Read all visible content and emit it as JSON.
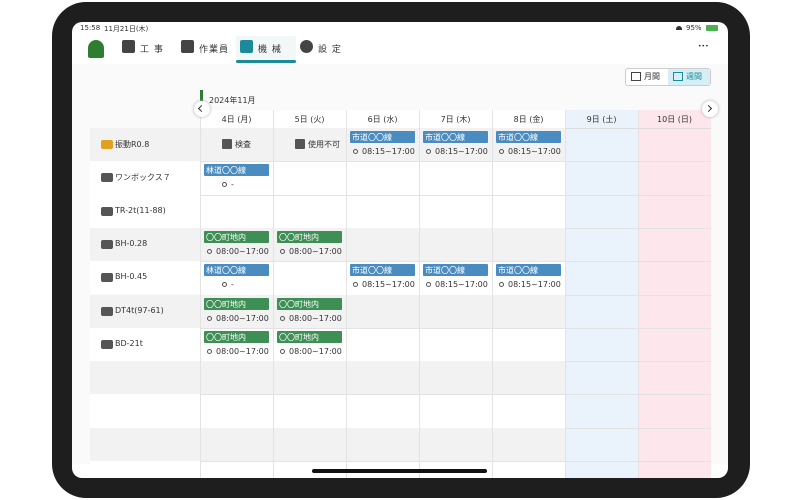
{
  "status_bar": {
    "time": "15:58",
    "date": "11月21日(木)",
    "battery": "95%"
  },
  "nav": {
    "items": [
      "工 事",
      "作業員",
      "機 械",
      "設 定"
    ],
    "active": 2,
    "more": "•••"
  },
  "view_toggle": {
    "items": [
      "月間",
      "週間"
    ],
    "active": 1
  },
  "month": "2024年11月",
  "days": [
    "4日 (月)",
    "5日 (火)",
    "6日 (水)",
    "7日 (木)",
    "8日 (金)",
    "9日 (土)",
    "10日 (日)"
  ],
  "machines": [
    {
      "name": "振動R0.8",
      "cells": [
        {
          "text": "検査"
        },
        {
          "text": "使用不可"
        },
        {
          "label": "市道〇〇線",
          "time": "08:15~17:00",
          "color": "#4a8cc0"
        },
        {
          "label": "市道〇〇線",
          "time": "08:15~17:00",
          "color": "#4a8cc0"
        },
        {
          "label": "市道〇〇線",
          "time": "08:15~17:00",
          "color": "#4a8cc0"
        },
        null,
        null
      ]
    },
    {
      "name": "ワンボックス７",
      "cells": [
        {
          "label": "林道〇〇線",
          "time": "-",
          "color": "#4a8cc0"
        },
        null,
        null,
        null,
        null,
        null,
        null
      ]
    },
    {
      "name": "TR-2t(11-88)",
      "cells": [
        null,
        null,
        null,
        null,
        null,
        null,
        null
      ]
    },
    {
      "name": "BH-0.28",
      "cells": [
        {
          "label": "〇〇町地内",
          "time": "08:00~17:00",
          "color": "#3e8f55"
        },
        {
          "label": "〇〇町地内",
          "time": "08:00~17:00",
          "color": "#3e8f55"
        },
        null,
        null,
        null,
        null,
        null
      ]
    },
    {
      "name": "BH-0.45",
      "cells": [
        {
          "label": "林道〇〇線",
          "time": "-",
          "color": "#4a8cc0"
        },
        null,
        {
          "label": "市道〇〇線",
          "time": "08:15~17:00",
          "color": "#4a8cc0"
        },
        {
          "label": "市道〇〇線",
          "time": "08:15~17:00",
          "color": "#4a8cc0"
        },
        {
          "label": "市道〇〇線",
          "time": "08:15~17:00",
          "color": "#4a8cc0"
        },
        null,
        null
      ]
    },
    {
      "name": "DT4t(97-61)",
      "cells": [
        {
          "label": "〇〇町地内",
          "time": "08:00~17:00",
          "color": "#3e8f55"
        },
        {
          "label": "〇〇町地内",
          "time": "08:00~17:00",
          "color": "#3e8f55"
        },
        null,
        null,
        null,
        null,
        null
      ]
    },
    {
      "name": "BD-21t",
      "cells": [
        {
          "label": "〇〇町地内",
          "time": "08:00~17:00",
          "color": "#3e8f55"
        },
        {
          "label": "〇〇町地内",
          "time": "08:00~17:00",
          "color": "#3e8f55"
        },
        null,
        null,
        null,
        null,
        null
      ]
    }
  ]
}
